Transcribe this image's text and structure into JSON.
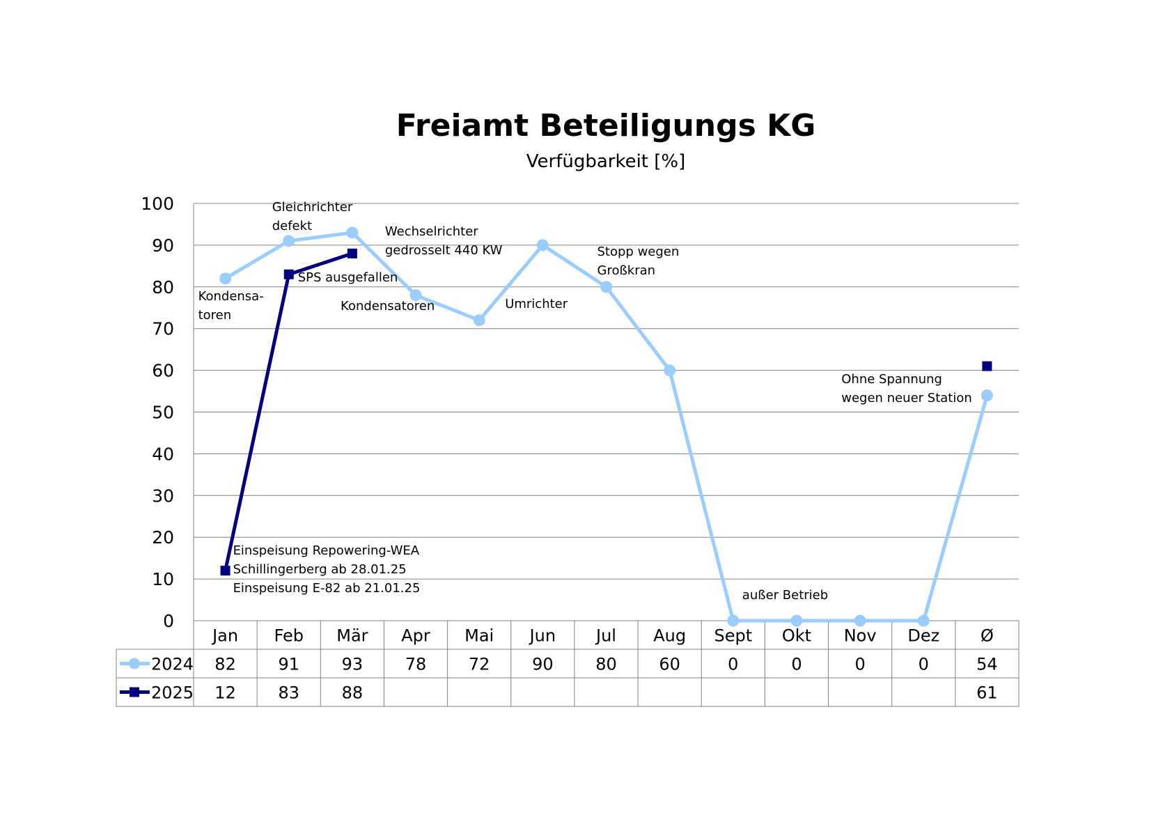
{
  "chart_data": {
    "type": "line",
    "title": "Freiamt Beteiligungs KG",
    "subtitle": "Verfügbarkeit [%]",
    "categories": [
      "Jan",
      "Feb",
      "Mär",
      "Apr",
      "Mai",
      "Jun",
      "Jul",
      "Aug",
      "Sept",
      "Okt",
      "Nov",
      "Dez",
      "Ø"
    ],
    "ylim": [
      0,
      100
    ],
    "yticks": [
      0,
      10,
      20,
      30,
      40,
      50,
      60,
      70,
      80,
      90,
      100
    ],
    "grid": true,
    "legend": "data-table",
    "series": [
      {
        "name": "2024",
        "color": "#99ccff",
        "marker": "circle",
        "values": [
          82,
          91,
          93,
          78,
          72,
          90,
          80,
          60,
          0,
          0,
          0,
          0,
          54
        ]
      },
      {
        "name": "2025",
        "color": "#000080",
        "marker": "square",
        "values": [
          12,
          83,
          88,
          null,
          null,
          null,
          null,
          null,
          null,
          null,
          null,
          null,
          61
        ]
      }
    ],
    "annotations": [
      {
        "lines": [
          "Gleichrichter",
          "defekt"
        ],
        "category": "Feb"
      },
      {
        "lines": [
          "Wechselrichter",
          "gedrosselt 440 KW"
        ],
        "category": "Mär"
      },
      {
        "lines": [
          "Stopp wegen",
          "Großkran"
        ],
        "category": "Jul"
      },
      {
        "lines": [
          "SPS ausgefallen"
        ],
        "category": "Feb"
      },
      {
        "lines": [
          "Kondensa-",
          "toren"
        ],
        "category": "Jan"
      },
      {
        "lines": [
          "Kondensatoren"
        ],
        "category": "Apr"
      },
      {
        "lines": [
          "Umrichter"
        ],
        "category": "Mai"
      },
      {
        "lines": [
          "Ohne Spannung",
          "wegen neuer Station"
        ],
        "category": "Dez"
      },
      {
        "lines": [
          "Einspeisung Repowering-WEA",
          "Schillingerberg ab 28.01.25",
          "Einspeisung E-82 ab 21.01.25"
        ],
        "category": "Jan"
      },
      {
        "lines": [
          "außer Betrieb"
        ],
        "category": "Sept"
      }
    ]
  }
}
